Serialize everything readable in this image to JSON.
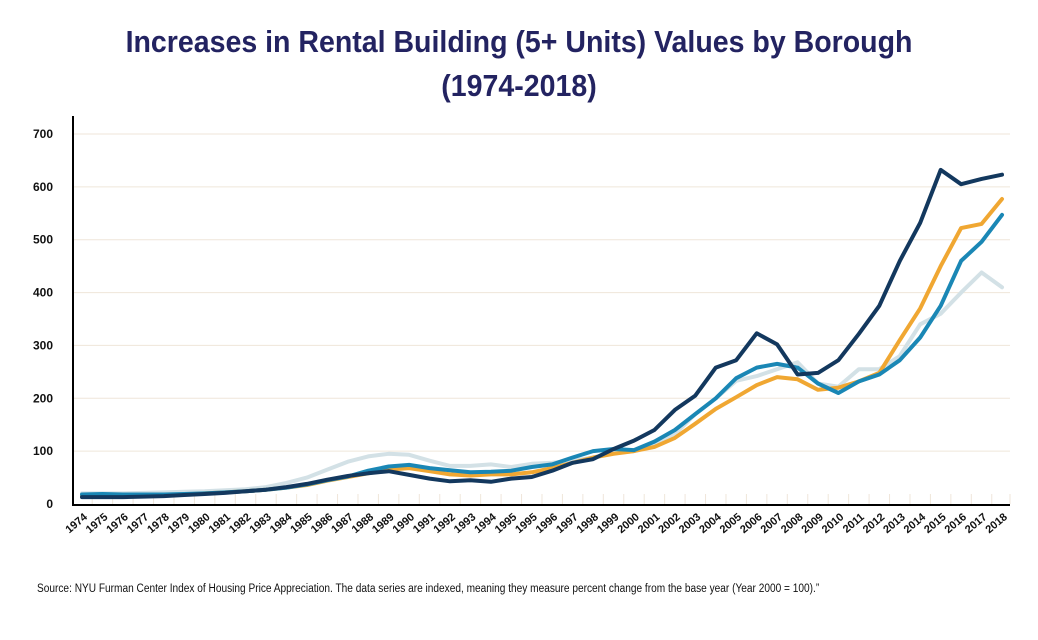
{
  "chart_data": {
    "type": "line",
    "title": "Increases in  Rental Building (5+ Units) Values by Borough",
    "subtitle": "(1974-2018)",
    "xlabel": "",
    "ylabel": "",
    "ylim": [
      0,
      700
    ],
    "yticks": [
      0,
      100,
      200,
      300,
      400,
      500,
      600,
      700
    ],
    "grid": true,
    "legend": "none",
    "categories": [
      "1974",
      "1975",
      "1976",
      "1977",
      "1978",
      "1979",
      "1980",
      "1981",
      "1982",
      "1983",
      "1984",
      "1985",
      "1986",
      "1987",
      "1988",
      "1989",
      "1990",
      "1991",
      "1992",
      "1993",
      "1994",
      "1995",
      "1995",
      "1996",
      "1997",
      "1998",
      "1999",
      "2000",
      "2001",
      "2002",
      "2003",
      "2004",
      "2005",
      "2006",
      "2007",
      "2008",
      "2009",
      "2010",
      "2011",
      "2012",
      "2013",
      "2014",
      "2015",
      "2016",
      "2017",
      "2018"
    ],
    "series": [
      {
        "name": "light-gray-blue series",
        "color": "#d3e1e6",
        "values": [
          20,
          20,
          20,
          21,
          22,
          23,
          24,
          26,
          28,
          32,
          40,
          50,
          65,
          80,
          90,
          95,
          93,
          82,
          72,
          72,
          75,
          70,
          76,
          78,
          82,
          88,
          96,
          100,
          110,
          132,
          170,
          200,
          233,
          242,
          255,
          268,
          228,
          222,
          255,
          255,
          280,
          340,
          360,
          400,
          438,
          410
        ]
      },
      {
        "name": "orange series",
        "color": "#f0a732",
        "values": [
          15,
          15,
          15,
          16,
          17,
          18,
          20,
          22,
          24,
          27,
          31,
          36,
          44,
          51,
          58,
          65,
          68,
          62,
          56,
          54,
          56,
          56,
          60,
          68,
          78,
          88,
          95,
          100,
          108,
          125,
          152,
          180,
          202,
          225,
          240,
          236,
          216,
          220,
          232,
          248,
          310,
          370,
          450,
          522,
          530,
          577
        ]
      },
      {
        "name": "teal series",
        "color": "#1a87b5",
        "values": [
          18,
          19,
          18,
          18,
          18,
          19,
          20,
          22,
          24,
          27,
          31,
          37,
          45,
          52,
          63,
          71,
          74,
          68,
          64,
          60,
          61,
          63,
          70,
          75,
          88,
          100,
          104,
          102,
          118,
          140,
          170,
          200,
          238,
          258,
          265,
          258,
          228,
          210,
          232,
          245,
          272,
          315,
          375,
          460,
          496,
          547
        ]
      },
      {
        "name": "dark-navy series",
        "color": "#13385e",
        "values": [
          13,
          13,
          13,
          14,
          15,
          17,
          19,
          21,
          24,
          27,
          32,
          38,
          46,
          53,
          58,
          62,
          55,
          48,
          43,
          45,
          42,
          48,
          51,
          63,
          78,
          85,
          104,
          120,
          140,
          178,
          205,
          258,
          272,
          323,
          302,
          245,
          248,
          272,
          322,
          375,
          460,
          532,
          632,
          605,
          615,
          623
        ]
      }
    ]
  },
  "source_note": "Source: NYU Furman Center Index of Housing Price Appreciation. The data series are indexed, meaning they measure percent change from the base year (Year 2000 = 100).”"
}
